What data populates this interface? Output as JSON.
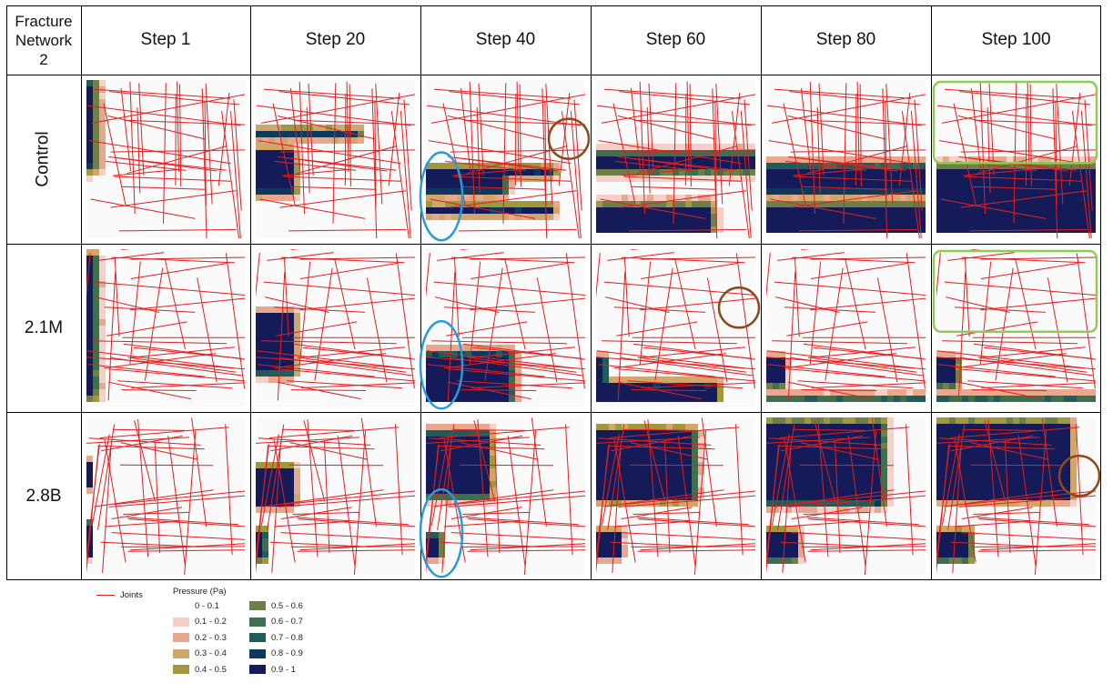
{
  "corner_label": [
    "Fracture",
    "Network",
    "2"
  ],
  "columns": [
    "Step 1",
    "Step 20",
    "Step 40",
    "Step 60",
    "Step 80",
    "Step 100"
  ],
  "rows": [
    "Control",
    "2.1M",
    "2.8B"
  ],
  "panels": [
    [
      {
        "fill": [
          [
            0,
            0.02,
            0.04,
            0.55,
            0.93
          ]
        ]
      },
      {
        "fill": [
          [
            0,
            0.22,
            0.48,
            0.72,
            0.48
          ],
          [
            0,
            0.64,
            0.36,
            0.34,
            0.22
          ]
        ]
      },
      {
        "fill": [
          [
            0,
            0.48,
            0.6,
            0.72,
            0.52
          ],
          [
            0,
            0.78,
            0.85,
            0.6,
            0.48
          ]
        ]
      },
      {
        "fill": [
          [
            0,
            0.7,
            0.85,
            1.0,
            0.72
          ],
          [
            0,
            1.0,
            0.5,
            0.58,
            0.48
          ]
        ]
      },
      {
        "fill": [
          [
            0,
            1.0,
            0.85,
            1.0,
            0.78
          ],
          [
            0,
            1.0,
            0.58,
            0.72,
            0.58
          ]
        ]
      },
      {
        "fill": [
          [
            0,
            1.0,
            1.0,
            1.0,
            1.0
          ],
          [
            0,
            1.0,
            0.6,
            1.0,
            0.78
          ]
        ]
      }
    ],
    [
      {
        "fill": [
          [
            0,
            0.04,
            0.06,
            0.95,
            0.5
          ]
        ]
      },
      {
        "fill": [
          [
            0,
            0.22,
            0.44,
            0.8,
            0.4
          ]
        ]
      },
      {
        "fill": [
          [
            0,
            0.52,
            0.7,
            1.0,
            0.52
          ],
          [
            0,
            0.05,
            0.72,
            0.88,
            0.16
          ]
        ]
      },
      {
        "fill": [
          [
            0,
            0.74,
            0.9,
            1.0,
            0.55
          ],
          [
            0,
            0.05,
            0.72,
            0.88,
            0.16
          ]
        ]
      },
      {
        "fill": [
          [
            0,
            0.98,
            1.0,
            1.0,
            0.58
          ],
          [
            0,
            0.1,
            0.72,
            0.88,
            0.16
          ]
        ]
      },
      {
        "fill": [
          [
            0,
            1.0,
            1.0,
            1.0,
            0.6
          ],
          [
            0,
            0.12,
            0.72,
            0.88,
            0.16
          ]
        ]
      }
    ],
    [
      {
        "fill": [
          [
            0,
            0.02,
            0.3,
            0.45,
            0.1
          ],
          [
            0,
            0.02,
            0.7,
            0.9,
            0.08
          ]
        ]
      },
      {
        "fill": [
          [
            0,
            0.22,
            0.34,
            0.56,
            0.28
          ],
          [
            0,
            0.05,
            0.75,
            0.92,
            0.12
          ]
        ]
      },
      {
        "fill": [
          [
            0,
            0.38,
            0.12,
            0.5,
            0.5
          ],
          [
            0,
            0.08,
            0.78,
            0.9,
            0.18
          ]
        ]
      },
      {
        "fill": [
          [
            0,
            0.6,
            0.1,
            0.52,
            0.48
          ],
          [
            0,
            0.14,
            0.76,
            0.9,
            0.22
          ]
        ]
      },
      {
        "fill": [
          [
            0,
            0.72,
            0.05,
            0.55,
            0.4
          ],
          [
            0,
            0.18,
            0.76,
            0.92,
            0.26
          ]
        ]
      },
      {
        "fill": [
          [
            0,
            0.82,
            0.05,
            0.52,
            0.4
          ],
          [
            0,
            0.2,
            0.76,
            0.92,
            0.28
          ]
        ]
      }
    ]
  ],
  "annotations": {
    "blue_ellipses": [
      [
        0,
        2
      ],
      [
        1,
        2
      ],
      [
        2,
        2
      ]
    ],
    "brown_circles": [
      [
        0,
        2
      ],
      [
        1,
        3
      ],
      [
        2,
        5
      ]
    ],
    "green_boxes": [
      [
        0,
        5
      ],
      [
        1,
        5
      ]
    ]
  },
  "legend": {
    "joints_label": "Joints",
    "joints_color": "#e02020",
    "title": "Pressure (Pa)",
    "classes": [
      {
        "label": "0 - 0.1",
        "color": "#ffffff"
      },
      {
        "label": "0.1 - 0.2",
        "color": "#f6cfc8"
      },
      {
        "label": "0.2 - 0.3",
        "color": "#e8a88e"
      },
      {
        "label": "0.3 - 0.4",
        "color": "#d2a66a"
      },
      {
        "label": "0.4 - 0.5",
        "color": "#a0983e"
      },
      {
        "label": "0.5 - 0.6",
        "color": "#6e8048"
      },
      {
        "label": "0.6 - 0.7",
        "color": "#3e7050"
      },
      {
        "label": "0.7 - 0.8",
        "color": "#1f5c5a"
      },
      {
        "label": "0.8 - 0.9",
        "color": "#0d3a5c"
      },
      {
        "label": "0.9 - 1",
        "color": "#141b58"
      }
    ]
  }
}
